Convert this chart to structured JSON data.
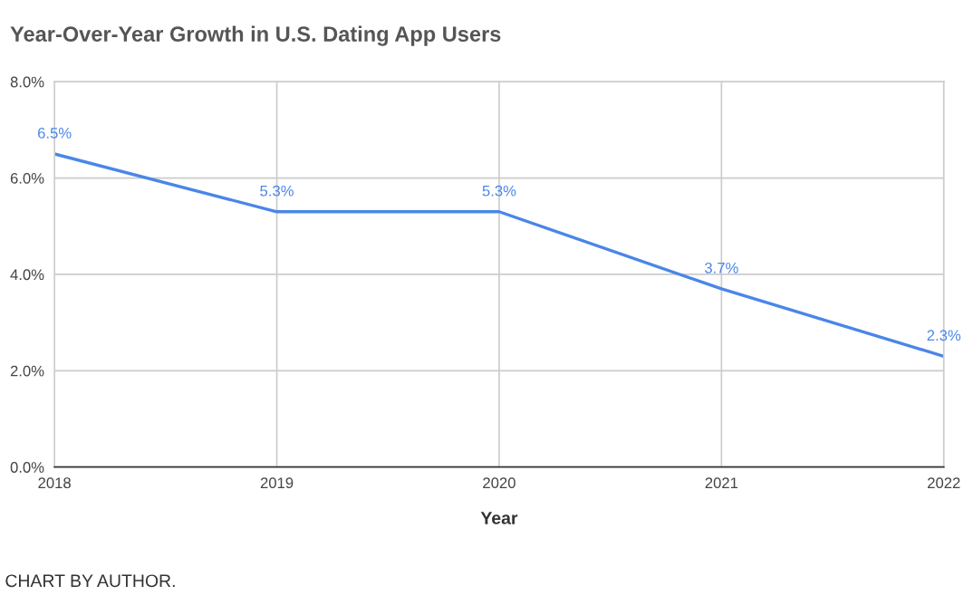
{
  "chart_data": {
    "type": "line",
    "title": "Year-Over-Year Growth in U.S. Dating App Users",
    "xlabel": "Year",
    "x": [
      2018,
      2019,
      2020,
      2021,
      2022
    ],
    "series": [
      {
        "color": "#4a86e8",
        "values": [
          6.5,
          5.3,
          5.3,
          3.7,
          2.3
        ],
        "value_labels": [
          "6.5%",
          "5.3%",
          "5.3%",
          "3.7%",
          "2.3%"
        ]
      }
    ],
    "xlim": [
      2018,
      2022
    ],
    "xticks": [
      2018,
      2019,
      2020,
      2021,
      2022
    ],
    "ylim": [
      0,
      8
    ],
    "yticks": [
      {
        "value": 0,
        "label": "0.0%"
      },
      {
        "value": 2,
        "label": "2.0%"
      },
      {
        "value": 4,
        "label": "4.0%"
      },
      {
        "value": 6,
        "label": "6.0%"
      },
      {
        "value": 8,
        "label": "8.0%"
      }
    ],
    "grid": true,
    "legend": false,
    "marker": "none",
    "line_style": "solid",
    "annotations": [
      "CHART BY AUTHOR."
    ]
  }
}
